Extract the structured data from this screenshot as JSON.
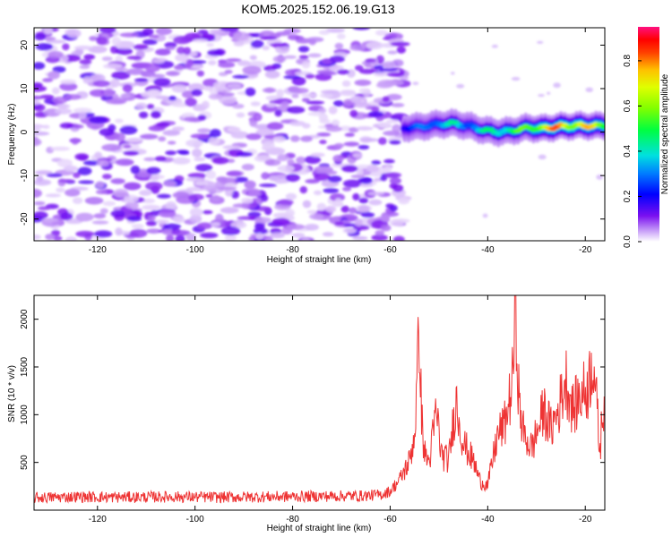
{
  "title": "KOM5.2025.152.06.19.G13",
  "colors": {
    "spectro_purple": "#8a20f0",
    "spectro_light": "#dcc8fb",
    "snr_line": "#ee3333",
    "axis": "#000000"
  },
  "chart_data": [
    {
      "type": "heatmap",
      "xlabel": "Height of straight line (km)",
      "ylabel": "Frequency (Hz)",
      "xlim": [
        -133,
        -16
      ],
      "ylim": [
        -25,
        24
      ],
      "xticks": [
        -120,
        -100,
        -80,
        -60,
        -40,
        -20
      ],
      "xtick_labels": [
        "-120",
        "-100",
        "-80",
        "-60",
        "-40",
        "-20"
      ],
      "yticks": [
        -20,
        -10,
        0,
        10,
        20
      ],
      "ytick_labels": [
        "-20",
        "-10",
        "0",
        "10",
        "20"
      ],
      "colorbar": {
        "label": "Normalized spectral amplitude",
        "range": [
          0,
          0.95
        ],
        "ticks": [
          0.0,
          0.2,
          0.4,
          0.6,
          0.8
        ],
        "tick_labels": [
          "0.0",
          "0.2",
          "0.4",
          "0.6",
          "0.8"
        ]
      },
      "noise_region_km": [
        -133,
        -57
      ],
      "noise_amplitude_range": [
        0.02,
        0.15
      ],
      "signal_onset_km": -57,
      "signal_track": [
        {
          "x": -57,
          "y": 1.0,
          "amp": 0.25
        },
        {
          "x": -54,
          "y": 1.2,
          "amp": 0.3
        },
        {
          "x": -50,
          "y": 1.8,
          "amp": 0.4
        },
        {
          "x": -47,
          "y": 2.0,
          "amp": 0.45
        },
        {
          "x": -44,
          "y": 1.4,
          "amp": 0.35
        },
        {
          "x": -41,
          "y": 0.5,
          "amp": 0.45
        },
        {
          "x": -38,
          "y": 0.0,
          "amp": 0.5
        },
        {
          "x": -35,
          "y": 0.3,
          "amp": 0.55
        },
        {
          "x": -32,
          "y": 1.0,
          "amp": 0.6
        },
        {
          "x": -29,
          "y": 0.8,
          "amp": 0.8
        },
        {
          "x": -25,
          "y": 1.3,
          "amp": 0.85
        },
        {
          "x": -21,
          "y": 1.5,
          "amp": 0.8
        },
        {
          "x": -18,
          "y": 1.4,
          "amp": 0.75
        },
        {
          "x": -16,
          "y": 1.5,
          "amp": 0.7
        }
      ]
    },
    {
      "type": "line",
      "xlabel": "Height of straight line (km)",
      "ylabel": "SNR (10 * v/v)",
      "xlim": [
        -133,
        -16
      ],
      "ylim": [
        0,
        2250
      ],
      "xticks": [
        -120,
        -100,
        -80,
        -60,
        -40,
        -20
      ],
      "xtick_labels": [
        "-120",
        "-100",
        "-80",
        "-60",
        "-40",
        "-20"
      ],
      "yticks": [
        500,
        1000,
        1500,
        2000
      ],
      "ytick_labels": [
        "500",
        "1000",
        "1500",
        "2000"
      ],
      "series": [
        {
          "color": "#ee3333",
          "points": [
            [
              -133,
              130
            ],
            [
              -125,
              140
            ],
            [
              -115,
              135
            ],
            [
              -105,
              140
            ],
            [
              -95,
              135
            ],
            [
              -85,
              140
            ],
            [
              -75,
              145
            ],
            [
              -66,
              150
            ],
            [
              -62,
              160
            ],
            [
              -60,
              200
            ],
            [
              -58,
              320
            ],
            [
              -56,
              520
            ],
            [
              -55,
              800
            ],
            [
              -54.5,
              1300
            ],
            [
              -54,
              2000
            ],
            [
              -53.6,
              1000
            ],
            [
              -53,
              600
            ],
            [
              -52,
              500
            ],
            [
              -50.5,
              1050
            ],
            [
              -49.5,
              580
            ],
            [
              -48,
              520
            ],
            [
              -46.5,
              1150
            ],
            [
              -45,
              700
            ],
            [
              -43,
              520
            ],
            [
              -41.5,
              300
            ],
            [
              -40,
              260
            ],
            [
              -38,
              780
            ],
            [
              -36.5,
              900
            ],
            [
              -35,
              1300
            ],
            [
              -34.3,
              2100
            ],
            [
              -33.5,
              1050
            ],
            [
              -32.5,
              780
            ],
            [
              -31,
              650
            ],
            [
              -29.5,
              880
            ],
            [
              -28.5,
              1050
            ],
            [
              -27,
              850
            ],
            [
              -25.5,
              1050
            ],
            [
              -24,
              1380
            ],
            [
              -22.5,
              1050
            ],
            [
              -21,
              1200
            ],
            [
              -19.5,
              1280
            ],
            [
              -18.3,
              1620
            ],
            [
              -17.7,
              1120
            ],
            [
              -17,
              600
            ],
            [
              -16.5,
              1000
            ],
            [
              -16,
              1200
            ]
          ]
        }
      ]
    }
  ]
}
